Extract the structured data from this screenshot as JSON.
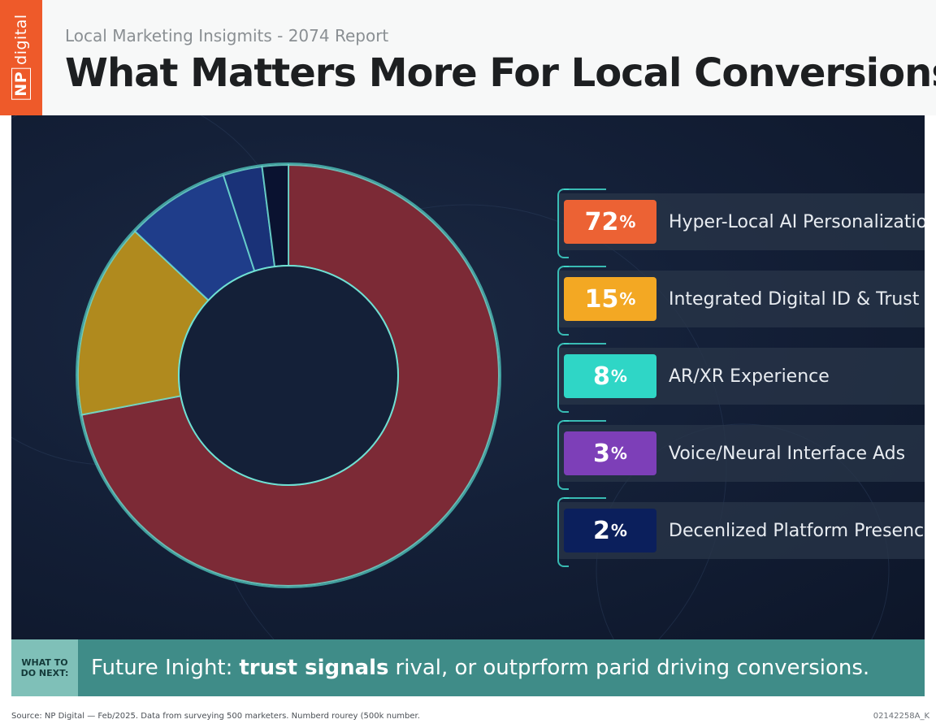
{
  "brand": {
    "np": "NP",
    "name": "digital"
  },
  "header": {
    "subtitle": "Local Marketing Insigmits - 2074 Report",
    "title": "What Matters More For Local Conversions?"
  },
  "chart_data": {
    "type": "pie",
    "style": "donut",
    "categories": [
      "Hyper-Local AI Personalization",
      "Integrated Digital ID & Trust",
      "AR/XR Experience",
      "Voice/Neural Interface Ads",
      "Decenlized Platform Presence"
    ],
    "values": [
      72,
      15,
      8,
      3,
      2
    ],
    "value_labels": [
      "72",
      "15",
      "8",
      "3",
      "2"
    ],
    "unit": "%",
    "legend_colors": [
      "#ec6234",
      "#f3a823",
      "#2fd6c6",
      "#7d3fb8",
      "#0b1f5c"
    ],
    "ring_slices": [
      {
        "label": "Hyper-Local AI Personalization",
        "value": 72,
        "color": "#7c2a36"
      },
      {
        "label": "Integrated Digital ID & Trust",
        "value": 15,
        "color": "#b08a1e"
      },
      {
        "label": "AR/XR Experience",
        "value": 8,
        "color": "#1f3d8a"
      },
      {
        "label": "Voice/Neural Interface Ads",
        "value": 3,
        "color": "#1a3278"
      },
      {
        "label": "Decenlized Platform Presence",
        "value": 2,
        "color": "#0a1230"
      }
    ],
    "legend_placement": "right"
  },
  "insight": {
    "tag_line1": "WHAT TO",
    "tag_line2": "DO NEXT:",
    "prefix": "Future Inight:",
    "bold": "trust signals",
    "suffix": "rival, or outprform parid driving conversions."
  },
  "footer": {
    "source": "Source: NP Digital — Feb/2025. Data from surveying 500 marketers. Numberd rourey (500k number.",
    "code": "02142258A_K"
  }
}
